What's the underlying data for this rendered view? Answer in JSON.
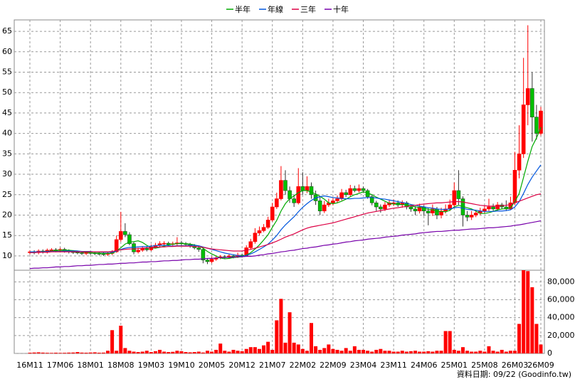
{
  "chart_data": {
    "type": "candlestick",
    "categories": [
      "16M11",
      null,
      null,
      null,
      null,
      null,
      null,
      "17M06",
      null,
      null,
      null,
      null,
      null,
      null,
      "18M01",
      null,
      null,
      null,
      null,
      null,
      null,
      "18M08",
      null,
      null,
      null,
      null,
      null,
      null,
      "19M03",
      null,
      null,
      null,
      null,
      null,
      null,
      "19M10",
      null,
      null,
      null,
      null,
      null,
      null,
      "20M05",
      null,
      null,
      null,
      null,
      null,
      null,
      "20M12",
      null,
      null,
      null,
      null,
      null,
      null,
      "21M07",
      null,
      null,
      null,
      null,
      null,
      null,
      "22M02",
      null,
      null,
      null,
      null,
      null,
      null,
      "22M09",
      null,
      null,
      null,
      null,
      null,
      null,
      "23M04",
      null,
      null,
      null,
      null,
      null,
      null,
      "23M11",
      null,
      null,
      null,
      null,
      null,
      null,
      "24M06",
      null,
      null,
      null,
      null,
      null,
      null,
      "25M01",
      null,
      null,
      null,
      null,
      null,
      null,
      "25M08",
      null,
      null,
      null,
      null,
      null,
      null,
      "26M03",
      null,
      null,
      null,
      null,
      null,
      "26M09"
    ],
    "open": [
      10.8,
      11.0,
      10.8,
      11.2,
      11.0,
      11.4,
      11.5,
      11.3,
      11.6,
      11.2,
      11.0,
      10.9,
      10.8,
      10.6,
      10.8,
      10.7,
      10.6,
      10.5,
      10.4,
      10.6,
      11.0,
      14.0,
      16.0,
      15.2,
      13.0,
      11.0,
      11.4,
      11.8,
      11.5,
      12.2,
      12.6,
      13.0,
      13.1,
      12.8,
      13.0,
      13.2,
      13.0,
      12.8,
      12.4,
      12.0,
      11.6,
      9.0,
      8.6,
      9.2,
      9.5,
      9.8,
      9.6,
      10.0,
      9.8,
      10.2,
      10.0,
      12.0,
      13.5,
      15.6,
      16.2,
      17.0,
      18.8,
      22.0,
      24.0,
      28.5,
      26.0,
      24.0,
      23.0,
      27.0,
      26.0,
      27.0,
      25.0,
      23.5,
      21.0,
      22.5,
      23.0,
      23.5,
      24.0,
      25.5,
      25.0,
      26.5,
      26.0,
      26.5,
      26.0,
      24.5,
      23.0,
      22.0,
      21.5,
      22.5,
      23.0,
      23.0,
      22.5,
      23.0,
      22.0,
      21.5,
      21.0,
      22.0,
      21.0,
      20.5,
      21.5,
      20.0,
      21.0,
      21.5,
      22.5,
      26.0,
      24.0,
      20.0,
      19.5,
      20.0,
      20.5,
      21.0,
      21.5,
      22.0,
      21.5,
      22.5,
      22.0,
      21.5,
      23.0,
      31.0,
      35.0,
      47.0,
      51.0,
      44.0,
      40.0
    ],
    "high": [
      11.4,
      11.4,
      11.6,
      11.6,
      11.8,
      11.9,
      11.9,
      12.0,
      12.0,
      11.6,
      11.4,
      11.3,
      11.2,
      11.2,
      11.2,
      11.1,
      11.0,
      10.9,
      11.0,
      11.4,
      15.0,
      20.8,
      18.0,
      15.8,
      13.4,
      12.0,
      12.4,
      12.3,
      12.8,
      13.2,
      13.6,
      13.6,
      13.5,
      13.5,
      14.6,
      13.7,
      13.4,
      13.2,
      12.9,
      12.4,
      11.8,
      9.4,
      9.8,
      10.0,
      10.2,
      10.2,
      10.4,
      10.4,
      10.8,
      10.6,
      12.6,
      14.2,
      16.8,
      17.2,
      17.8,
      19.6,
      23.0,
      25.5,
      32.0,
      31.0,
      27.0,
      25.0,
      31.5,
      30.5,
      29.5,
      28.0,
      26.0,
      24.5,
      23.5,
      24.0,
      24.2,
      24.8,
      26.4,
      26.2,
      27.4,
      27.2,
      27.5,
      27.0,
      26.4,
      25.0,
      23.5,
      22.6,
      23.2,
      23.8,
      23.8,
      23.6,
      23.6,
      23.4,
      22.6,
      22.2,
      22.8,
      22.4,
      21.8,
      22.6,
      22.0,
      21.8,
      22.6,
      23.8,
      28.0,
      31.0,
      24.6,
      21.0,
      21.0,
      21.2,
      21.8,
      22.4,
      24.0,
      22.8,
      23.2,
      23.0,
      23.6,
      24.5,
      35.5,
      42.0,
      58.5,
      66.5,
      55.0,
      47.0,
      46.5
    ],
    "low": [
      10.4,
      10.4,
      10.4,
      10.6,
      10.6,
      11.0,
      10.9,
      10.9,
      10.8,
      10.6,
      10.5,
      10.4,
      10.2,
      10.2,
      10.3,
      10.2,
      10.1,
      10.0,
      10.0,
      10.2,
      10.8,
      13.5,
      14.6,
      12.6,
      10.4,
      10.6,
      11.0,
      11.1,
      11.2,
      11.8,
      12.2,
      12.6,
      12.4,
      12.4,
      12.6,
      12.6,
      12.3,
      12.0,
      11.6,
      11.0,
      8.2,
      8.0,
      8.2,
      8.8,
      9.2,
      9.2,
      9.3,
      9.4,
      9.5,
      9.6,
      9.8,
      11.6,
      13.0,
      15.0,
      15.8,
      16.6,
      18.4,
      21.5,
      23.6,
      25.0,
      23.0,
      22.0,
      22.6,
      25.0,
      25.4,
      24.0,
      22.5,
      20.0,
      20.5,
      22.0,
      22.4,
      23.0,
      23.6,
      24.4,
      24.6,
      25.6,
      25.5,
      25.4,
      24.0,
      22.4,
      21.0,
      20.6,
      21.0,
      22.0,
      22.2,
      22.0,
      21.8,
      21.4,
      20.8,
      20.0,
      20.4,
      19.8,
      17.5,
      19.8,
      19.0,
      19.2,
      20.4,
      21.0,
      22.0,
      22.5,
      17.2,
      18.5,
      18.8,
      19.5,
      20.0,
      20.5,
      21.0,
      21.0,
      21.0,
      21.4,
      21.0,
      21.2,
      22.5,
      29.0,
      34.0,
      42.0,
      38.0,
      38.5,
      39.5
    ],
    "close": [
      11.0,
      10.8,
      11.2,
      11.0,
      11.4,
      11.5,
      11.3,
      11.6,
      11.2,
      11.0,
      10.9,
      10.8,
      10.6,
      10.8,
      10.7,
      10.6,
      10.5,
      10.4,
      10.6,
      11.0,
      14.0,
      16.0,
      15.2,
      13.0,
      11.0,
      11.4,
      11.8,
      11.5,
      12.2,
      12.6,
      13.0,
      13.1,
      12.8,
      13.0,
      13.2,
      13.0,
      12.8,
      12.4,
      12.0,
      11.6,
      9.0,
      8.6,
      9.2,
      9.5,
      9.8,
      9.6,
      10.0,
      9.8,
      10.2,
      10.0,
      12.0,
      13.5,
      15.6,
      16.2,
      17.0,
      18.8,
      22.0,
      24.0,
      28.5,
      26.0,
      24.0,
      23.0,
      27.0,
      26.0,
      27.0,
      25.0,
      23.5,
      21.0,
      22.5,
      23.0,
      23.5,
      24.0,
      25.5,
      25.0,
      26.5,
      26.0,
      26.5,
      26.0,
      24.5,
      23.0,
      22.0,
      21.5,
      22.5,
      23.0,
      23.0,
      22.5,
      23.0,
      22.0,
      21.5,
      21.0,
      22.0,
      21.0,
      20.5,
      21.5,
      20.0,
      21.0,
      21.5,
      22.5,
      26.0,
      24.0,
      20.0,
      19.5,
      20.0,
      20.5,
      21.0,
      21.5,
      22.0,
      21.5,
      22.5,
      22.0,
      21.5,
      23.0,
      31.0,
      35.0,
      47.0,
      51.0,
      44.0,
      40.0,
      45.5
    ],
    "up_color": "#ff0000",
    "down_color": "#00c000",
    "series": [
      {
        "name": "半年",
        "color": "#00aa00",
        "values": [
          11.0,
          10.9,
          11.0,
          11.0,
          11.1,
          11.2,
          11.3,
          11.4,
          11.4,
          11.4,
          11.3,
          11.2,
          11.0,
          10.9,
          10.8,
          10.7,
          10.7,
          10.6,
          10.6,
          10.6,
          11.2,
          12.0,
          12.9,
          13.4,
          13.5,
          13.7,
          13.3,
          12.6,
          12.0,
          11.9,
          12.1,
          12.4,
          12.7,
          12.9,
          13.0,
          13.0,
          13.0,
          12.9,
          12.7,
          12.4,
          11.9,
          11.1,
          10.5,
          10.0,
          9.5,
          9.3,
          9.4,
          9.6,
          9.7,
          9.8,
          10.2,
          10.8,
          11.7,
          12.7,
          13.9,
          15.2,
          17.0,
          18.7,
          21.0,
          22.8,
          24.0,
          24.7,
          25.5,
          26.0,
          26.0,
          25.6,
          25.2,
          24.6,
          23.9,
          23.0,
          22.8,
          23.0,
          23.4,
          23.9,
          24.5,
          25.0,
          25.3,
          25.7,
          25.4,
          25.0,
          24.4,
          23.9,
          23.4,
          22.9,
          22.7,
          22.6,
          22.6,
          22.5,
          22.3,
          22.0,
          21.9,
          21.7,
          21.4,
          21.3,
          21.0,
          20.9,
          20.8,
          21.2,
          22.0,
          22.4,
          22.1,
          21.8,
          21.5,
          21.0,
          20.4,
          20.4,
          20.6,
          20.9,
          21.3,
          21.5,
          21.6,
          21.8,
          23.3,
          25.3,
          29.2,
          33.2,
          36.8,
          38.9,
          41.5
        ]
      },
      {
        "name": "年線",
        "color": "#0055dd",
        "values": [
          11.0,
          11.0,
          11.0,
          11.0,
          11.1,
          11.1,
          11.1,
          11.1,
          11.2,
          11.2,
          11.2,
          11.2,
          11.1,
          11.1,
          11.1,
          11.0,
          11.0,
          10.9,
          10.9,
          10.9,
          11.2,
          11.6,
          11.9,
          12.1,
          12.1,
          12.2,
          12.3,
          12.3,
          12.4,
          12.5,
          12.6,
          12.6,
          12.5,
          12.4,
          12.5,
          12.5,
          12.5,
          12.6,
          12.6,
          12.5,
          12.2,
          11.9,
          11.6,
          11.3,
          11.0,
          10.7,
          10.5,
          10.3,
          10.1,
          9.9,
          10.1,
          10.5,
          11.0,
          11.6,
          12.2,
          12.9,
          13.9,
          15.0,
          16.4,
          17.6,
          18.6,
          19.6,
          20.8,
          21.9,
          22.8,
          23.6,
          24.2,
          24.5,
          24.7,
          24.5,
          24.3,
          24.2,
          24.1,
          24.0,
          24.0,
          24.1,
          24.1,
          24.2,
          24.3,
          24.3,
          24.2,
          24.0,
          23.9,
          23.7,
          23.5,
          23.3,
          23.1,
          22.9,
          22.6,
          22.4,
          22.2,
          22.0,
          21.8,
          21.7,
          21.5,
          21.4,
          21.4,
          21.5,
          21.8,
          21.9,
          21.7,
          21.4,
          21.3,
          21.2,
          21.0,
          20.9,
          20.9,
          20.9,
          21.0,
          21.0,
          21.1,
          21.3,
          22.0,
          23.3,
          25.3,
          27.5,
          29.3,
          30.8,
          32.3
        ]
      },
      {
        "name": "三年",
        "color": "#dd0044",
        "values": [
          10.8,
          10.8,
          10.9,
          10.9,
          10.9,
          11.0,
          11.0,
          11.0,
          11.0,
          11.0,
          11.0,
          11.0,
          11.0,
          11.0,
          11.0,
          11.0,
          11.0,
          11.0,
          11.0,
          11.1,
          11.3,
          11.5,
          11.6,
          11.7,
          11.7,
          11.8,
          11.9,
          12.0,
          12.0,
          12.1,
          12.2,
          12.2,
          12.3,
          12.3,
          12.4,
          12.4,
          12.4,
          12.4,
          12.3,
          12.3,
          12.1,
          11.9,
          11.7,
          11.6,
          11.5,
          11.4,
          11.3,
          11.2,
          11.2,
          11.2,
          11.4,
          11.6,
          11.9,
          12.2,
          12.5,
          12.8,
          13.2,
          13.6,
          14.1,
          14.6,
          15.0,
          15.4,
          15.9,
          16.4,
          16.8,
          17.1,
          17.3,
          17.5,
          17.7,
          17.9,
          18.1,
          18.4,
          18.7,
          19.0,
          19.3,
          19.6,
          19.9,
          20.2,
          20.5,
          20.7,
          20.9,
          21.1,
          21.3,
          21.5,
          21.7,
          21.8,
          22.0,
          22.1,
          22.3,
          22.4,
          22.6,
          22.7,
          22.8,
          22.9,
          23.0,
          23.0,
          23.1,
          23.2,
          23.3,
          23.3,
          23.2,
          23.0,
          22.8,
          22.6,
          22.4,
          22.3,
          22.2,
          22.2,
          22.2,
          22.3,
          22.4,
          22.6,
          23.0,
          23.4,
          23.8,
          24.2,
          24.6,
          25.0,
          25.2
        ]
      },
      {
        "name": "十年",
        "color": "#7700aa",
        "values": [
          6.9,
          7.0,
          7.0,
          7.1,
          7.1,
          7.2,
          7.3,
          7.3,
          7.4,
          7.4,
          7.5,
          7.6,
          7.6,
          7.7,
          7.7,
          7.8,
          7.9,
          7.9,
          8.0,
          8.0,
          8.1,
          8.2,
          8.2,
          8.3,
          8.3,
          8.4,
          8.5,
          8.5,
          8.6,
          8.6,
          8.7,
          8.8,
          8.8,
          8.9,
          8.9,
          9.0,
          9.1,
          9.1,
          9.2,
          9.2,
          9.3,
          9.4,
          9.4,
          9.5,
          9.6,
          9.6,
          9.7,
          9.7,
          9.8,
          9.8,
          9.9,
          9.9,
          10.0,
          10.2,
          10.3,
          10.5,
          10.6,
          10.8,
          11.0,
          11.1,
          11.3,
          11.4,
          11.6,
          11.8,
          11.9,
          12.1,
          12.2,
          12.4,
          12.6,
          12.7,
          12.9,
          13.0,
          13.2,
          13.4,
          13.5,
          13.7,
          13.8,
          13.9,
          14.1,
          14.2,
          14.3,
          14.4,
          14.6,
          14.7,
          14.8,
          14.9,
          15.1,
          15.2,
          15.3,
          15.4,
          15.6,
          15.7,
          15.8,
          15.9,
          16.0,
          16.0,
          16.1,
          16.2,
          16.3,
          16.3,
          16.4,
          16.5,
          16.6,
          16.6,
          16.7,
          16.8,
          16.9,
          16.9,
          17.0,
          17.1,
          17.2,
          17.3,
          17.5,
          17.6,
          17.8,
          18.0,
          18.2,
          18.4,
          18.6
        ]
      }
    ],
    "ylim": [
      6.5,
      67.8
    ],
    "yticks": [
      10,
      15,
      20,
      25,
      30,
      35,
      40,
      45,
      50,
      55,
      60,
      65
    ],
    "grid": true,
    "volume": {
      "color": "#ff0000",
      "values": [
        800,
        1000,
        1200,
        900,
        700,
        600,
        800,
        600,
        700,
        900,
        1000,
        1500,
        900,
        800,
        1000,
        1200,
        800,
        900,
        3000,
        26000,
        3000,
        31000,
        6000,
        3000,
        2000,
        1500,
        2000,
        3000,
        1500,
        2500,
        4000,
        2000,
        1500,
        1800,
        3000,
        2500,
        1500,
        1200,
        1500,
        2000,
        1000,
        3000,
        2000,
        4000,
        11000,
        3000,
        2000,
        4000,
        3000,
        2500,
        5000,
        7000,
        7000,
        5000,
        9000,
        13000,
        4000,
        37000,
        61000,
        12000,
        46000,
        12000,
        10000,
        5000,
        3000,
        34000,
        8000,
        4000,
        6000,
        10000,
        5000,
        4000,
        3000,
        6000,
        3000,
        8000,
        4000,
        4000,
        3000,
        2000,
        4000,
        5000,
        3000,
        3000,
        2000,
        2000,
        3000,
        2000,
        2500,
        3000,
        2000,
        2000,
        2500,
        2000,
        3000,
        3000,
        25000,
        25000,
        4000,
        3000,
        7000,
        3000,
        2000,
        2000,
        3000,
        2000,
        8000,
        3000,
        2000,
        4000,
        2000,
        3000,
        3000,
        33000,
        93000,
        92000,
        74000,
        33000,
        10000
      ],
      "ylim": [
        0,
        93000
      ],
      "yticks": [
        0,
        {
          "value": 20000,
          "label": "20,000"
        },
        {
          "value": 40000,
          "label": "40,000"
        },
        {
          "value": 60000,
          "label": "60,000"
        },
        {
          "value": 80000,
          "label": "80,000"
        }
      ]
    },
    "footer": "資料日期: 09/22 (Goodinfo.tw)"
  }
}
